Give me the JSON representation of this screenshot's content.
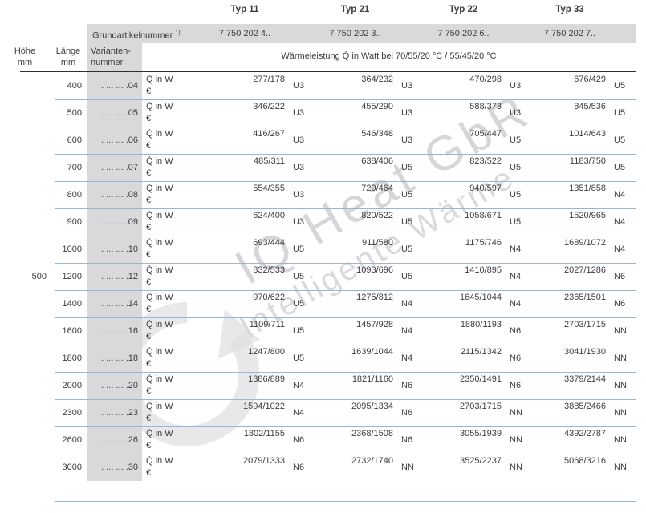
{
  "header": {
    "typ_columns": [
      {
        "label": "Typ 11",
        "grundartikelnummer": "7 750 202 4.."
      },
      {
        "label": "Typ 21",
        "grundartikelnummer": "7 750 202 3.."
      },
      {
        "label": "Typ 22",
        "grundartikelnummer": "7 750 202 6.."
      },
      {
        "label": "Typ 33",
        "grundartikelnummer": "7 750 202 7.."
      }
    ],
    "grundartikelnummer_label": "Grundartikelnummer",
    "grundartikelnummer_footnote": "1)",
    "hoehe": {
      "line1": "Höhe",
      "line2": "mm"
    },
    "laenge": {
      "line1": "Länge",
      "line2": "mm"
    },
    "varianten": {
      "line1": "Varianten-",
      "line2": "nummer"
    },
    "waermeleistung_label": "Wärmeleistung Q̇ in Watt bei 70/55/20 °C / 55/45/20 °C"
  },
  "row_label": {
    "q": "Q̇ in W",
    "euro": "€"
  },
  "rows": [
    {
      "laenge": "400",
      "variante": ". ... ... .04",
      "typ11": {
        "value": "277/178",
        "code": "U3"
      },
      "typ21": {
        "value": "364/232",
        "code": "U3"
      },
      "typ22": {
        "value": "470/298",
        "code": "U3"
      },
      "typ33": {
        "value": "676/429",
        "code": "U5"
      }
    },
    {
      "laenge": "500",
      "variante": ". ... ... .05",
      "typ11": {
        "value": "346/222",
        "code": "U3"
      },
      "typ21": {
        "value": "455/290",
        "code": "U3"
      },
      "typ22": {
        "value": "588/373",
        "code": "U3"
      },
      "typ33": {
        "value": "845/536",
        "code": "U5"
      }
    },
    {
      "laenge": "600",
      "variante": ". ... ... .06",
      "typ11": {
        "value": "416/267",
        "code": "U3"
      },
      "typ21": {
        "value": "546/348",
        "code": "U3"
      },
      "typ22": {
        "value": "705/447",
        "code": "U5"
      },
      "typ33": {
        "value": "1014/643",
        "code": "U5"
      }
    },
    {
      "laenge": "700",
      "variante": ". ... ... .07",
      "typ11": {
        "value": "485/311",
        "code": "U3"
      },
      "typ21": {
        "value": "638/406",
        "code": "U5"
      },
      "typ22": {
        "value": "823/522",
        "code": "U5"
      },
      "typ33": {
        "value": "1183/750",
        "code": "U5"
      }
    },
    {
      "laenge": "800",
      "variante": ". ... ... .08",
      "typ11": {
        "value": "554/355",
        "code": "U3"
      },
      "typ21": {
        "value": "729/464",
        "code": "U5"
      },
      "typ22": {
        "value": "940/597",
        "code": "U5"
      },
      "typ33": {
        "value": "1351/858",
        "code": "N4"
      }
    },
    {
      "laenge": "900",
      "variante": ". ... ... .09",
      "typ11": {
        "value": "624/400",
        "code": "U3"
      },
      "typ21": {
        "value": "820/522",
        "code": "U5"
      },
      "typ22": {
        "value": "1058/671",
        "code": "U5"
      },
      "typ33": {
        "value": "1520/965",
        "code": "N4"
      }
    },
    {
      "laenge": "1000",
      "variante": ". ... ... .10",
      "typ11": {
        "value": "693/444",
        "code": "U5"
      },
      "typ21": {
        "value": "911/580",
        "code": "U5"
      },
      "typ22": {
        "value": "1175/746",
        "code": "N4"
      },
      "typ33": {
        "value": "1689/1072",
        "code": "N4"
      }
    },
    {
      "hoehe": "500",
      "laenge": "1200",
      "variante": ". ... ... .12",
      "typ11": {
        "value": "832/533",
        "code": "U5"
      },
      "typ21": {
        "value": "1093/696",
        "code": "U5"
      },
      "typ22": {
        "value": "1410/895",
        "code": "N4"
      },
      "typ33": {
        "value": "2027/1286",
        "code": "N6"
      }
    },
    {
      "laenge": "1400",
      "variante": ". ... ... .14",
      "typ11": {
        "value": "970/622",
        "code": "U5"
      },
      "typ21": {
        "value": "1275/812",
        "code": "N4"
      },
      "typ22": {
        "value": "1645/1044",
        "code": "N4"
      },
      "typ33": {
        "value": "2365/1501",
        "code": "N6"
      }
    },
    {
      "laenge": "1600",
      "variante": ". ... ... .16",
      "typ11": {
        "value": "1109/711",
        "code": "U5"
      },
      "typ21": {
        "value": "1457/928",
        "code": "N4"
      },
      "typ22": {
        "value": "1880/1193",
        "code": "N6"
      },
      "typ33": {
        "value": "2703/1715",
        "code": "NN"
      }
    },
    {
      "laenge": "1800",
      "variante": ". ... ... .18",
      "typ11": {
        "value": "1247/800",
        "code": "U5"
      },
      "typ21": {
        "value": "1639/1044",
        "code": "N4"
      },
      "typ22": {
        "value": "2115/1342",
        "code": "N6"
      },
      "typ33": {
        "value": "3041/1930",
        "code": "NN"
      }
    },
    {
      "laenge": "2000",
      "variante": ". ... ... .20",
      "typ11": {
        "value": "1386/889",
        "code": "N4"
      },
      "typ21": {
        "value": "1821/1160",
        "code": "N6"
      },
      "typ22": {
        "value": "2350/1491",
        "code": "N6"
      },
      "typ33": {
        "value": "3379/2144",
        "code": "NN"
      }
    },
    {
      "laenge": "2300",
      "variante": ". ... ... .23",
      "typ11": {
        "value": "1594/1022",
        "code": "N4"
      },
      "typ21": {
        "value": "2095/1334",
        "code": "N6"
      },
      "typ22": {
        "value": "2703/1715",
        "code": "NN"
      },
      "typ33": {
        "value": "3885/2466",
        "code": "NN"
      }
    },
    {
      "laenge": "2600",
      "variante": ". ... ... .26",
      "typ11": {
        "value": "1802/1155",
        "code": "N6"
      },
      "typ21": {
        "value": "2368/1508",
        "code": "N6"
      },
      "typ22": {
        "value": "3055/1939",
        "code": "NN"
      },
      "typ33": {
        "value": "4392/2787",
        "code": "NN"
      }
    },
    {
      "laenge": "3000",
      "variante": ". ... ... .30",
      "typ11": {
        "value": "2079/1333",
        "code": "N6"
      },
      "typ21": {
        "value": "2732/1740",
        "code": "NN"
      },
      "typ22": {
        "value": "3525/2237",
        "code": "NN"
      },
      "typ33": {
        "value": "5068/3216",
        "code": "NN"
      }
    }
  ],
  "watermark": {
    "line1": "IQ Heat GbR",
    "line2": "Intelligente Wärme"
  },
  "colors": {
    "header_gray": "#d9d9d9",
    "separator_blue": "#96b8d8",
    "header_rule_dark": "#2f2f2f",
    "text": "#3d3d3d",
    "watermark_gray": "#d6d6d6"
  }
}
